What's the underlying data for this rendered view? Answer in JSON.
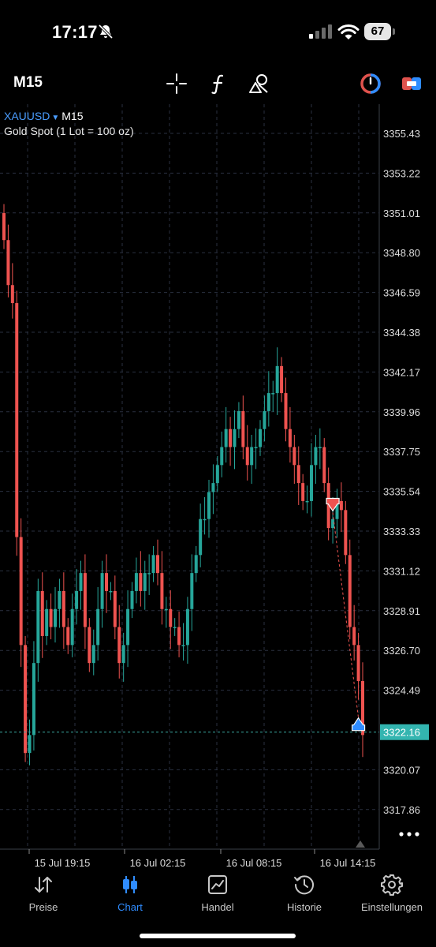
{
  "status_bar": {
    "time": "17:17",
    "battery": "67",
    "icons": [
      "bell-slash-icon",
      "cellular-signal-icon",
      "wifi-icon",
      "battery-icon"
    ]
  },
  "toolbar": {
    "timeframe": "M15",
    "tools": [
      "crosshair-icon",
      "indicator-f-icon",
      "objects-icon",
      "trade-toggle-icon",
      "one-click-icon"
    ]
  },
  "chart": {
    "symbol": "XAUUSD",
    "symbol_timeframe": "M15",
    "description": "Gold Spot (1 Lot = 100 oz)",
    "current_price": "3322.16",
    "colors": {
      "bull": "#26a69a",
      "bear": "#ef5350",
      "grid": "#2a3140",
      "price_line": "#3ba7a0",
      "price_label": "#33b5b0"
    }
  },
  "chart_data": {
    "type": "candlestick",
    "y_ticks": [
      "3355.43",
      "3353.22",
      "3351.01",
      "3348.80",
      "3346.59",
      "3344.38",
      "3342.17",
      "3339.96",
      "3337.75",
      "3335.54",
      "3333.33",
      "3331.12",
      "3328.91",
      "3326.70",
      "3324.49",
      "3322.16",
      "3320.07",
      "3317.86"
    ],
    "x_ticks": [
      "15 Jul 19:15",
      "16 Jul 02:15",
      "16 Jul 08:15",
      "16 Jul 14:15"
    ],
    "ylim": [
      3316.7,
      3356.6
    ],
    "closes": [
      3349.5,
      3347,
      3346,
      3333,
      3327,
      3321,
      3322,
      3326,
      3330,
      3327.5,
      3329,
      3328,
      3329,
      3330,
      3328,
      3327,
      3329,
      3330,
      3331,
      3328,
      3326,
      3327,
      3329,
      3331,
      3330,
      3330,
      3328,
      3326,
      3327,
      3329,
      3330,
      3331,
      3330,
      3331,
      3331,
      3332,
      3331,
      3329,
      3329,
      3328,
      3328,
      3327,
      3327,
      3329,
      3331,
      3332,
      3334,
      3334,
      3335.5,
      3336,
      3337,
      3338,
      3339,
      3338,
      3339,
      3340,
      3338,
      3337,
      3338,
      3338,
      3339,
      3340,
      3341,
      3341,
      3342.5,
      3341,
      3339,
      3338,
      3337,
      3336,
      3335,
      3335,
      3337,
      3338,
      3338,
      3336,
      3333.5,
      3334,
      3335,
      3334.5,
      3332,
      3328,
      3327,
      3325,
      3322
    ]
  },
  "trade_markers": [
    {
      "type": "sell",
      "color": "#ef5350",
      "icon": "sell-arrow-icon"
    },
    {
      "type": "buy",
      "color": "#2f8cff",
      "icon": "buy-arrow-icon"
    }
  ],
  "tabbar": {
    "tabs": [
      {
        "label": "Preise",
        "icon": "quotes-arrows-icon",
        "active": false
      },
      {
        "label": "Chart",
        "icon": "candlestick-icon",
        "active": true
      },
      {
        "label": "Handel",
        "icon": "trade-chart-icon",
        "active": false
      },
      {
        "label": "Historie",
        "icon": "history-clock-icon",
        "active": false
      },
      {
        "label": "Einstellungen",
        "icon": "settings-gear-icon",
        "active": false
      }
    ]
  }
}
